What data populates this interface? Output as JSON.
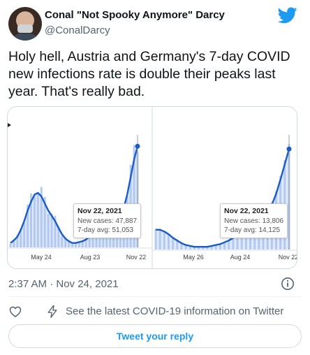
{
  "author": {
    "display_name": "Conal \"Not Spooky Anymore\" Darcy",
    "handle": "@ConalDarcy"
  },
  "tweet": {
    "text": "Holy hell, Austria and Germany's 7-day COVID new infections rate is double their peaks last year. That's really bad.",
    "timestamp": "2:37 AM · Nov 24, 2021"
  },
  "colors": {
    "brand": "#1d9bf0",
    "chart_line": "#1a5cc4",
    "chart_bars": "#a8c3f0"
  },
  "chart_data": [
    {
      "type": "line",
      "x_tick_labels": [
        "May 24",
        "Aug 23",
        "Nov 22"
      ],
      "series": [
        {
          "values": [
            0.05,
            0.08,
            0.12,
            0.2,
            0.3,
            0.42,
            0.52,
            0.6,
            0.62,
            0.58,
            0.5,
            0.42,
            0.36,
            0.3,
            0.22,
            0.15,
            0.1,
            0.07,
            0.05,
            0.05,
            0.06,
            0.07,
            0.09,
            0.12,
            0.18,
            0.25,
            0.32,
            0.35,
            0.36,
            0.38,
            0.4,
            0.38,
            0.36,
            0.45,
            0.6,
            0.8,
            1.0,
            1.15
          ]
        }
      ],
      "tooltip": {
        "date": "Nov 22, 2021",
        "lines": [
          "New cases: 47,887",
          "7-day avg: 51,053"
        ]
      }
    },
    {
      "type": "line",
      "x_tick_labels": [
        "May 26",
        "Aug 24",
        "Nov 22"
      ],
      "series": [
        {
          "values": [
            0.22,
            0.22,
            0.2,
            0.17,
            0.13,
            0.1,
            0.07,
            0.05,
            0.04,
            0.03,
            0.03,
            0.03,
            0.03,
            0.04,
            0.05,
            0.06,
            0.08,
            0.1,
            0.13,
            0.16,
            0.2,
            0.24,
            0.28,
            0.3,
            0.32,
            0.35,
            0.4,
            0.5,
            0.62,
            0.78,
            0.95,
            1.12
          ]
        }
      ],
      "tooltip": {
        "date": "Nov 22, 2021",
        "lines": [
          "New cases: 13,806",
          "7-day avg: 14,125"
        ]
      }
    }
  ],
  "actions": {
    "covid_info": "See the latest COVID-19 information on Twitter",
    "reply": "Tweet your reply"
  },
  "icons": {
    "logo": "twitter-bird-icon",
    "info": "info-icon",
    "like": "heart-icon",
    "covid": "lightning-bolt-icon"
  }
}
